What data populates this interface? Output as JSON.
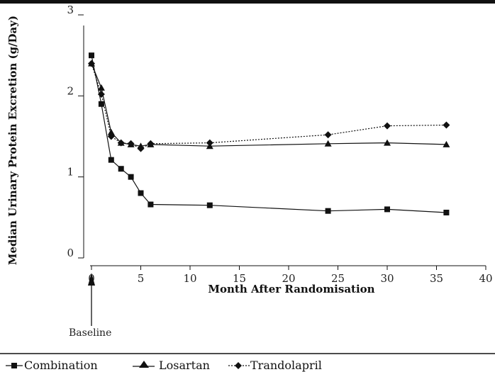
{
  "chart_data": {
    "type": "line",
    "xlabel": "Month After Randomisation",
    "ylabel": "Median Urinary Protein Excretion (g/Day)",
    "xlim": [
      0,
      40
    ],
    "ylim": [
      0,
      3
    ],
    "x_ticks": [
      "0",
      "5",
      "10",
      "15",
      "20",
      "25",
      "30",
      "35",
      "40"
    ],
    "y_ticks": [
      "0",
      "1",
      "2",
      "3"
    ],
    "grid": false,
    "legend_position": "bottom",
    "annotation": {
      "text": "Baseline",
      "x": 0
    },
    "series": [
      {
        "name": "Combination",
        "marker": "square",
        "line": "solid",
        "color": "#111111",
        "points": [
          [
            0,
            2.5
          ],
          [
            1,
            1.9
          ],
          [
            2,
            1.21
          ],
          [
            3,
            1.1
          ],
          [
            4,
            1.0
          ],
          [
            5,
            0.8
          ],
          [
            6,
            0.66
          ],
          [
            12,
            0.65
          ],
          [
            24,
            0.58
          ],
          [
            30,
            0.6
          ],
          [
            36,
            0.56
          ]
        ]
      },
      {
        "name": "Losartan",
        "marker": "triangle",
        "line": "solid",
        "color": "#111111",
        "points": [
          [
            0,
            2.4
          ],
          [
            1,
            2.1
          ],
          [
            2,
            1.55
          ],
          [
            3,
            1.42
          ],
          [
            4,
            1.4
          ],
          [
            5,
            1.38
          ],
          [
            6,
            1.4
          ],
          [
            12,
            1.38
          ],
          [
            24,
            1.41
          ],
          [
            30,
            1.42
          ],
          [
            36,
            1.4
          ]
        ]
      },
      {
        "name": "Trandolapril",
        "marker": "diamond",
        "line": "dotted",
        "color": "#111111",
        "points": [
          [
            0,
            2.4
          ],
          [
            1,
            2.02
          ],
          [
            2,
            1.5
          ],
          [
            3,
            1.42
          ],
          [
            4,
            1.41
          ],
          [
            5,
            1.35
          ],
          [
            6,
            1.41
          ],
          [
            12,
            1.42
          ],
          [
            24,
            1.52
          ],
          [
            30,
            1.63
          ],
          [
            36,
            1.64
          ]
        ]
      }
    ]
  }
}
